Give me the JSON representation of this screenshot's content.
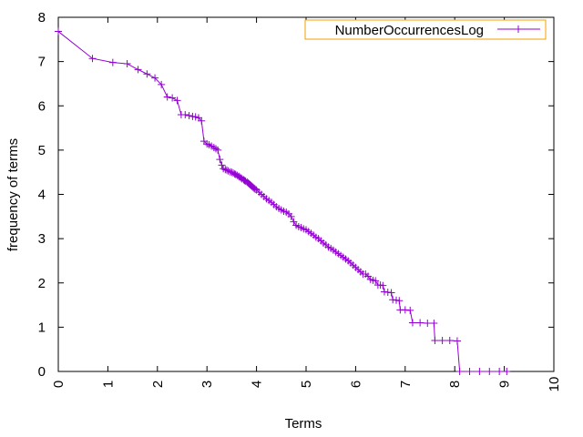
{
  "chart_data": {
    "type": "line",
    "title": "",
    "xlabel": "Terms",
    "ylabel": "frequency of terms",
    "xlim": [
      0,
      10
    ],
    "ylim": [
      0,
      8
    ],
    "x_ticks": [
      "0",
      "1",
      "2",
      "3",
      "4",
      "5",
      "6",
      "7",
      "8",
      "9",
      "10"
    ],
    "y_ticks": [
      "0",
      "1",
      "2",
      "3",
      "4",
      "5",
      "6",
      "7",
      "8"
    ],
    "grid": false,
    "legend": {
      "position": "top-right"
    },
    "series": [
      {
        "name": "NumberOccurrencesLog",
        "color": "#9400D3",
        "marker": "plus",
        "points": [
          [
            0.0,
            7.68
          ],
          [
            0.69,
            7.07
          ],
          [
            1.1,
            6.98
          ],
          [
            1.39,
            6.95
          ],
          [
            1.61,
            6.82
          ],
          [
            1.79,
            6.72
          ],
          [
            1.95,
            6.63
          ],
          [
            2.08,
            6.48
          ],
          [
            2.2,
            6.2
          ],
          [
            2.3,
            6.18
          ],
          [
            2.4,
            6.12
          ],
          [
            2.48,
            5.8
          ],
          [
            2.56,
            5.8
          ],
          [
            2.64,
            5.78
          ],
          [
            2.71,
            5.76
          ],
          [
            2.77,
            5.75
          ],
          [
            2.83,
            5.73
          ],
          [
            2.89,
            5.66
          ],
          [
            2.94,
            5.2
          ],
          [
            3.0,
            5.14
          ],
          [
            3.04,
            5.12
          ],
          [
            3.09,
            5.09
          ],
          [
            3.14,
            5.06
          ],
          [
            3.18,
            5.03
          ],
          [
            3.22,
            5.0
          ],
          [
            3.26,
            4.79
          ],
          [
            3.3,
            4.66
          ],
          [
            3.33,
            4.58
          ],
          [
            3.37,
            4.56
          ],
          [
            3.4,
            4.55
          ],
          [
            3.43,
            4.53
          ],
          [
            3.47,
            4.51
          ],
          [
            3.5,
            4.5
          ],
          [
            3.53,
            4.48
          ],
          [
            3.56,
            4.46
          ],
          [
            3.58,
            4.45
          ],
          [
            3.61,
            4.43
          ],
          [
            3.64,
            4.41
          ],
          [
            3.66,
            4.39
          ],
          [
            3.69,
            4.37
          ],
          [
            3.71,
            4.35
          ],
          [
            3.74,
            4.33
          ],
          [
            3.76,
            4.31
          ],
          [
            3.78,
            4.3
          ],
          [
            3.81,
            4.28
          ],
          [
            3.83,
            4.26
          ],
          [
            3.85,
            4.24
          ],
          [
            3.87,
            4.22
          ],
          [
            3.89,
            4.2
          ],
          [
            3.91,
            4.18
          ],
          [
            3.93,
            4.16
          ],
          [
            3.95,
            4.14
          ],
          [
            3.97,
            4.12
          ],
          [
            4.0,
            4.1
          ],
          [
            4.05,
            4.05
          ],
          [
            4.1,
            4.0
          ],
          [
            4.15,
            3.95
          ],
          [
            4.2,
            3.9
          ],
          [
            4.25,
            3.86
          ],
          [
            4.3,
            3.82
          ],
          [
            4.35,
            3.77
          ],
          [
            4.4,
            3.72
          ],
          [
            4.45,
            3.68
          ],
          [
            4.5,
            3.65
          ],
          [
            4.55,
            3.62
          ],
          [
            4.6,
            3.6
          ],
          [
            4.65,
            3.56
          ],
          [
            4.7,
            3.5
          ],
          [
            4.75,
            3.38
          ],
          [
            4.8,
            3.3
          ],
          [
            4.85,
            3.27
          ],
          [
            4.9,
            3.25
          ],
          [
            4.95,
            3.22
          ],
          [
            5.0,
            3.2
          ],
          [
            5.05,
            3.16
          ],
          [
            5.1,
            3.12
          ],
          [
            5.15,
            3.08
          ],
          [
            5.2,
            3.03
          ],
          [
            5.25,
            3.0
          ],
          [
            5.3,
            2.95
          ],
          [
            5.35,
            2.9
          ],
          [
            5.4,
            2.86
          ],
          [
            5.45,
            2.81
          ],
          [
            5.5,
            2.78
          ],
          [
            5.55,
            2.74
          ],
          [
            5.6,
            2.7
          ],
          [
            5.65,
            2.66
          ],
          [
            5.7,
            2.62
          ],
          [
            5.75,
            2.58
          ],
          [
            5.8,
            2.54
          ],
          [
            5.85,
            2.5
          ],
          [
            5.9,
            2.45
          ],
          [
            5.95,
            2.4
          ],
          [
            6.0,
            2.35
          ],
          [
            6.05,
            2.3
          ],
          [
            6.1,
            2.25
          ],
          [
            6.15,
            2.2
          ],
          [
            6.2,
            2.2
          ],
          [
            6.25,
            2.15
          ],
          [
            6.3,
            2.08
          ],
          [
            6.35,
            2.06
          ],
          [
            6.4,
            2.05
          ],
          [
            6.45,
            1.95
          ],
          [
            6.5,
            1.95
          ],
          [
            6.55,
            1.94
          ],
          [
            6.58,
            1.8
          ],
          [
            6.65,
            1.79
          ],
          [
            6.72,
            1.78
          ],
          [
            6.75,
            1.62
          ],
          [
            6.82,
            1.61
          ],
          [
            6.88,
            1.6
          ],
          [
            6.9,
            1.39
          ],
          [
            7.0,
            1.39
          ],
          [
            7.1,
            1.38
          ],
          [
            7.15,
            1.1
          ],
          [
            7.3,
            1.1
          ],
          [
            7.45,
            1.09
          ],
          [
            7.58,
            1.09
          ],
          [
            7.6,
            0.7
          ],
          [
            7.75,
            0.7
          ],
          [
            7.9,
            0.7
          ],
          [
            8.05,
            0.69
          ],
          [
            8.1,
            0.0
          ],
          [
            8.3,
            0.0
          ],
          [
            8.5,
            0.0
          ],
          [
            8.7,
            0.0
          ],
          [
            8.9,
            0.0
          ],
          [
            9.05,
            0.0
          ]
        ]
      }
    ]
  }
}
